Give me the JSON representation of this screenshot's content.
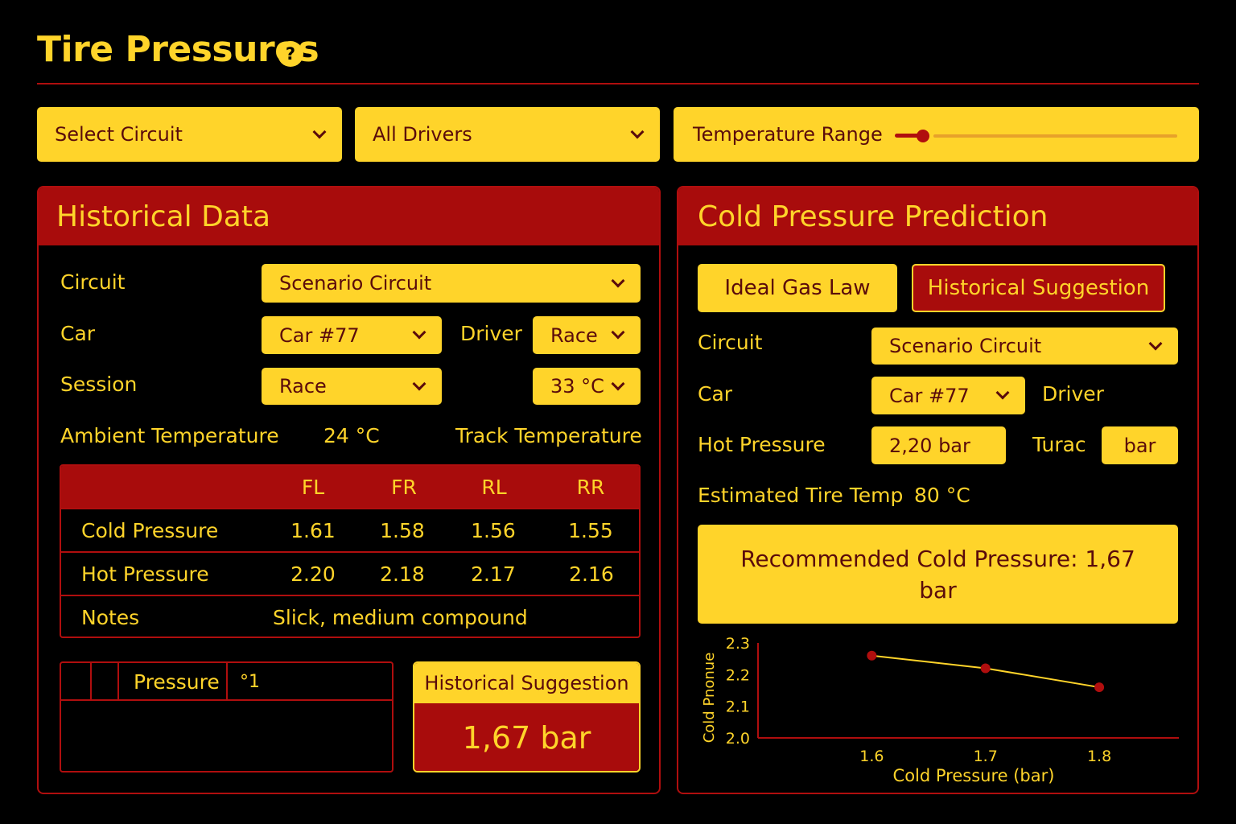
{
  "header": {
    "title": "Tire Pressures",
    "help_icon": "?"
  },
  "filters": {
    "circuit": "Select Circuit",
    "drivers": "All Drivers",
    "temperature_range_label": "Temperature Range",
    "temperature_range_level": 0.1
  },
  "historical": {
    "title": "Historical Data",
    "circuit_label": "Circuit",
    "circuit_value": "Scenario Circuit",
    "car_label": "Car",
    "car_value": "Car #77",
    "driver_label": "Driver",
    "driver_value": "Race",
    "session_label": "Session",
    "session_value": "Race",
    "temp_value": "33 °C",
    "ambient_label": "Ambient Temperature",
    "ambient_value": "24 °C",
    "track_label": "Track Temperature",
    "table": {
      "headers": [
        "FL",
        "FR",
        "RL",
        "RR"
      ],
      "cold_label": "Cold Pressure",
      "cold": [
        "1.61",
        "1.58",
        "1.56",
        "1.55"
      ],
      "hot_label": "Hot Pressure",
      "hot": [
        "2.20",
        "2.18",
        "2.17",
        "2.16"
      ],
      "notes_label": "Notes",
      "notes": "Slick, medium compound"
    },
    "mini_table": {
      "col_label": "Pressure",
      "col_value": "°1"
    },
    "suggestion_label": "Historical Suggestion",
    "suggestion_value": "1,67 bar"
  },
  "prediction": {
    "title": "Cold Pressure Prediction",
    "ideal_gas_button": "Ideal Gas Law",
    "historical_button": "Historical Suggestion",
    "circuit_label": "Circuit",
    "circuit_value": "Scenario Circuit",
    "car_label": "Car",
    "car_value": "Car #77",
    "driver_label": "Driver",
    "hot_label": "Hot Pressure",
    "hot_value": "2,20 bar",
    "turac_label": "Turac",
    "unit_value": "bar",
    "est_label": "Estimated Tire Temp",
    "est_value": "80 °C",
    "recommendation": "Recommended Cold Pressure: 1,67 bar"
  },
  "chart_data": {
    "type": "line",
    "x": [
      1.6,
      1.7,
      1.8
    ],
    "y": [
      2.26,
      2.22,
      2.16
    ],
    "xlabel": "Cold Pressure (bar)",
    "ylabel": "Cold Pnonue",
    "x_ticks": [
      "1.6",
      "1.7",
      "1.8"
    ],
    "y_ticks": [
      "2.3",
      "2.2",
      "2.1",
      "2.0"
    ],
    "xlim": [
      1.5,
      1.87
    ],
    "ylim": [
      2.0,
      2.3
    ],
    "grid": false,
    "line_color": "#ffd42a",
    "marker_color": "#b00e0e"
  }
}
